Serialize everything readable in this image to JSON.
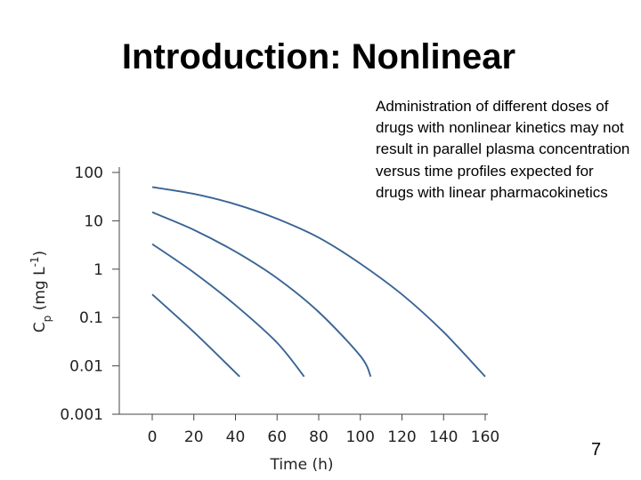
{
  "slide": {
    "title": "Introduction: Nonlinear",
    "description": "Administration of different doses of drugs with nonlinear kinetics may not result in parallel plasma concentration versus time profiles expected for drugs with linear pharmacokinetics",
    "page_number": "7"
  },
  "chart_data": {
    "type": "line",
    "title": "",
    "xlabel": "Time (h)",
    "ylabel": "Cp (mg L-1)",
    "y_scale": "log",
    "xlim": [
      0,
      160
    ],
    "ylim": [
      0.001,
      100
    ],
    "x_ticks": [
      "0",
      "20",
      "40",
      "60",
      "80",
      "100",
      "120",
      "140",
      "160"
    ],
    "y_ticks": [
      "100",
      "10",
      "1",
      "0.1",
      "0.01",
      "0.001"
    ],
    "grid": false,
    "series_color": "#3a6494",
    "series": [
      {
        "x": [
          0,
          20,
          40,
          60,
          80,
          100,
          120,
          140,
          160
        ],
        "y": [
          50,
          36,
          22,
          11,
          4.5,
          1.3,
          0.3,
          0.05,
          0.006
        ]
      },
      {
        "x": [
          0,
          20,
          40,
          60,
          80,
          100,
          105
        ],
        "y": [
          15,
          6.5,
          2.3,
          0.65,
          0.13,
          0.016,
          0.006
        ]
      },
      {
        "x": [
          0,
          20,
          40,
          60,
          73
        ],
        "y": [
          3.3,
          0.85,
          0.18,
          0.03,
          0.006
        ]
      },
      {
        "x": [
          0,
          20,
          42
        ],
        "y": [
          0.3,
          0.05,
          0.006
        ]
      }
    ]
  }
}
